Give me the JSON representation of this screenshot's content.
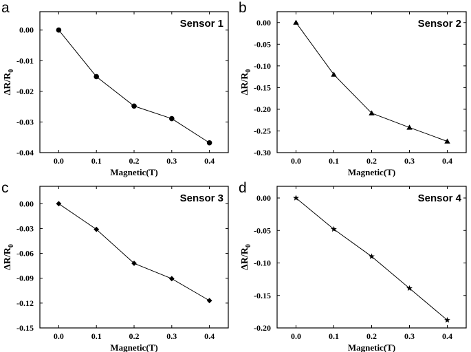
{
  "chart_data": [
    {
      "type": "line",
      "panel": "a",
      "title": "Sensor 1",
      "xlabel": "Magnetic(T)",
      "ylabel": {
        "main": "ΔR/R",
        "sub": "0"
      },
      "x": [
        0.0,
        0.1,
        0.2,
        0.3,
        0.4
      ],
      "values": [
        0.0,
        -0.0152,
        -0.0248,
        -0.0289,
        -0.0368
      ],
      "marker": "circle",
      "xlim": [
        -0.05,
        0.45
      ],
      "ylim": [
        -0.04,
        0.006
      ],
      "xticks": [
        0.0,
        0.1,
        0.2,
        0.3,
        0.4
      ],
      "xtick_labels": [
        "0.0",
        "0.1",
        "0.2",
        "0.3",
        "0.4"
      ],
      "yticks": [
        0.0,
        -0.01,
        -0.02,
        -0.03,
        -0.04
      ],
      "ytick_labels": [
        "0.00",
        "-0.01",
        "-0.02",
        "-0.03",
        "-0.04"
      ],
      "grid": false
    },
    {
      "type": "line",
      "panel": "b",
      "title": "Sensor 2",
      "xlabel": "Magnetic(T)",
      "ylabel": {
        "main": "ΔR/R",
        "sub": "0"
      },
      "x": [
        0.0,
        0.1,
        0.2,
        0.3,
        0.4
      ],
      "values": [
        0.0,
        -0.12,
        -0.209,
        -0.242,
        -0.274
      ],
      "marker": "triangle",
      "xlim": [
        -0.05,
        0.45
      ],
      "ylim": [
        -0.3,
        0.025
      ],
      "xticks": [
        0.0,
        0.1,
        0.2,
        0.3,
        0.4
      ],
      "xtick_labels": [
        "0.0",
        "0.1",
        "0.2",
        "0.3",
        "0.4"
      ],
      "yticks": [
        0.0,
        -0.05,
        -0.1,
        -0.15,
        -0.2,
        -0.25,
        -0.3
      ],
      "ytick_labels": [
        "0.00",
        "-0.05",
        "-0.10",
        "-0.15",
        "-0.20",
        "-0.25",
        "-0.30"
      ],
      "grid": false
    },
    {
      "type": "line",
      "panel": "c",
      "title": "Sensor 3",
      "xlabel": "Magnetic(T)",
      "ylabel": {
        "main": "ΔR/R",
        "sub": "0"
      },
      "x": [
        0.0,
        0.1,
        0.2,
        0.3,
        0.4
      ],
      "values": [
        0.0,
        -0.031,
        -0.072,
        -0.0905,
        -0.117
      ],
      "marker": "diamond",
      "xlim": [
        -0.05,
        0.45
      ],
      "ylim": [
        -0.15,
        0.021
      ],
      "xticks": [
        0.0,
        0.1,
        0.2,
        0.3,
        0.4
      ],
      "xtick_labels": [
        "0.0",
        "0.1",
        "0.2",
        "0.3",
        "0.4"
      ],
      "yticks": [
        0.0,
        -0.03,
        -0.06,
        -0.09,
        -0.12,
        -0.15
      ],
      "ytick_labels": [
        "0.00",
        "-0.03",
        "-0.06",
        "-0.09",
        "-0.12",
        "-0.15"
      ],
      "grid": false
    },
    {
      "type": "line",
      "panel": "d",
      "title": "Sensor 4",
      "xlabel": "Magnetic(T)",
      "ylabel": {
        "main": "ΔR/R",
        "sub": "0"
      },
      "x": [
        0.0,
        0.1,
        0.2,
        0.3,
        0.4
      ],
      "values": [
        0.0,
        -0.048,
        -0.09,
        -0.139,
        -0.188
      ],
      "marker": "star",
      "xlim": [
        -0.05,
        0.45
      ],
      "ylim": [
        -0.2,
        0.018
      ],
      "xticks": [
        0.0,
        0.1,
        0.2,
        0.3,
        0.4
      ],
      "xtick_labels": [
        "0.0",
        "0.1",
        "0.2",
        "0.3",
        "0.4"
      ],
      "yticks": [
        0.0,
        -0.05,
        -0.1,
        -0.15,
        -0.2
      ],
      "ytick_labels": [
        "0.00",
        "-0.05",
        "-0.10",
        "-0.15",
        "-0.20"
      ],
      "grid": false
    }
  ]
}
